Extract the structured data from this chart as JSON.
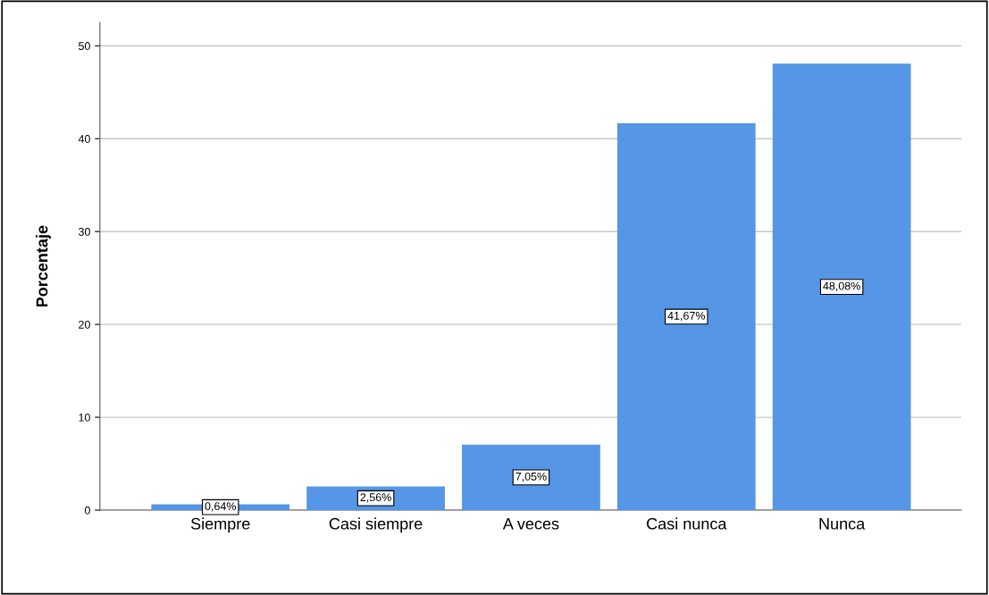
{
  "chart_data": {
    "type": "bar",
    "ylabel": "Porcentaje",
    "categories": [
      "Siempre",
      "Casi siempre",
      "A veces",
      "Casi nunca",
      "Nunca"
    ],
    "values": [
      0.64,
      2.56,
      7.05,
      41.67,
      48.08
    ],
    "value_labels": [
      "0,64%",
      "2,56%",
      "7,05%",
      "41,67%",
      "48,08%"
    ],
    "color": "#5596e6",
    "ylim": [
      0,
      52.5
    ],
    "yticks": [
      0,
      10,
      20,
      30,
      40,
      50
    ],
    "grid": "y",
    "legend": false
  }
}
